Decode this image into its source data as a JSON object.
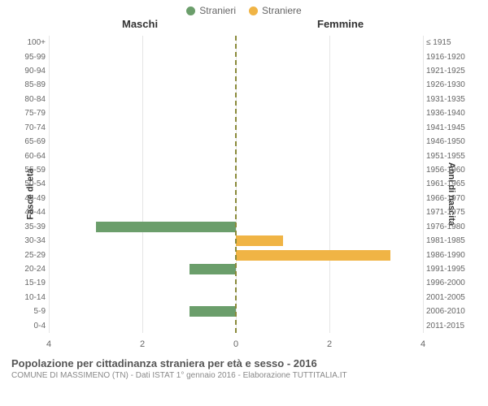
{
  "legend": {
    "male": {
      "label": "Stranieri",
      "color": "#6b9e6b"
    },
    "female": {
      "label": "Straniere",
      "color": "#f0b445"
    }
  },
  "category_titles": {
    "left": "Maschi",
    "right": "Femmine"
  },
  "yaxis": {
    "left_title": "Fasce di età",
    "right_title": "Anni di nascita"
  },
  "chart": {
    "type": "bar-pyramid",
    "xlim": 4,
    "xtick_step": 2,
    "grid_color": "#e5e5e5",
    "center_line_color": "#8a8a3a",
    "background": "#ffffff",
    "rows": [
      {
        "age": "100+",
        "birth": "≤ 1915",
        "m": 0,
        "f": 0
      },
      {
        "age": "95-99",
        "birth": "1916-1920",
        "m": 0,
        "f": 0
      },
      {
        "age": "90-94",
        "birth": "1921-1925",
        "m": 0,
        "f": 0
      },
      {
        "age": "85-89",
        "birth": "1926-1930",
        "m": 0,
        "f": 0
      },
      {
        "age": "80-84",
        "birth": "1931-1935",
        "m": 0,
        "f": 0
      },
      {
        "age": "75-79",
        "birth": "1936-1940",
        "m": 0,
        "f": 0
      },
      {
        "age": "70-74",
        "birth": "1941-1945",
        "m": 0,
        "f": 0
      },
      {
        "age": "65-69",
        "birth": "1946-1950",
        "m": 0,
        "f": 0
      },
      {
        "age": "60-64",
        "birth": "1951-1955",
        "m": 0,
        "f": 0
      },
      {
        "age": "55-59",
        "birth": "1956-1960",
        "m": 0,
        "f": 0
      },
      {
        "age": "50-54",
        "birth": "1961-1965",
        "m": 0,
        "f": 0
      },
      {
        "age": "45-49",
        "birth": "1966-1970",
        "m": 0,
        "f": 0
      },
      {
        "age": "40-44",
        "birth": "1971-1975",
        "m": 0,
        "f": 0
      },
      {
        "age": "35-39",
        "birth": "1976-1980",
        "m": 3.0,
        "f": 0
      },
      {
        "age": "30-34",
        "birth": "1981-1985",
        "m": 0,
        "f": 1.0
      },
      {
        "age": "25-29",
        "birth": "1986-1990",
        "m": 0,
        "f": 3.3
      },
      {
        "age": "20-24",
        "birth": "1991-1995",
        "m": 1.0,
        "f": 0
      },
      {
        "age": "15-19",
        "birth": "1996-2000",
        "m": 0,
        "f": 0
      },
      {
        "age": "10-14",
        "birth": "2001-2005",
        "m": 0,
        "f": 0
      },
      {
        "age": "5-9",
        "birth": "2006-2010",
        "m": 1.0,
        "f": 0
      },
      {
        "age": "0-4",
        "birth": "2011-2015",
        "m": 0,
        "f": 0
      }
    ]
  },
  "xticks": {
    "left": [
      "4",
      "2",
      "0"
    ],
    "right": [
      "2",
      "4"
    ]
  },
  "caption": {
    "title": "Popolazione per cittadinanza straniera per età e sesso - 2016",
    "subtitle": "COMUNE DI MASSIMENO (TN) - Dati ISTAT 1° gennaio 2016 - Elaborazione TUTTITALIA.IT"
  }
}
